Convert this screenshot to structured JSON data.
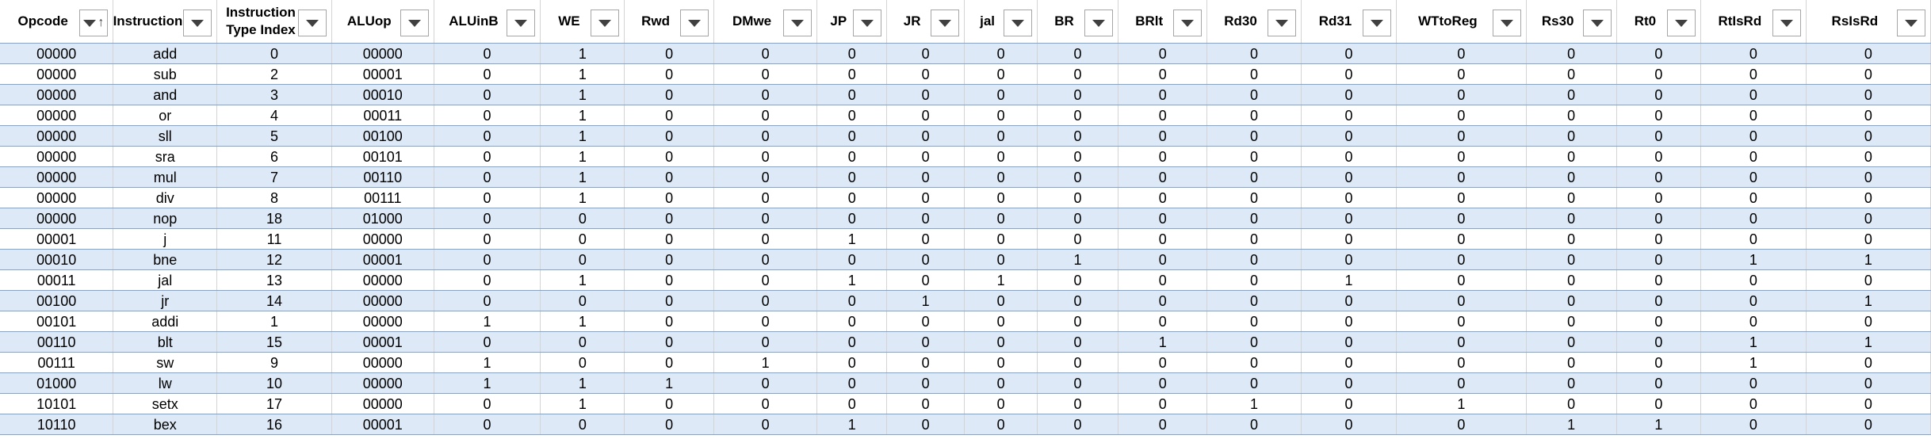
{
  "sheet": {
    "columns": [
      {
        "label": "Opcode",
        "sort_asc": true
      },
      {
        "label": "Instructions"
      },
      {
        "label": "Instruction Type Index",
        "lines": [
          "Instruction",
          "Type Index"
        ]
      },
      {
        "label": "ALUop"
      },
      {
        "label": "ALUinB"
      },
      {
        "label": "WE"
      },
      {
        "label": "Rwd"
      },
      {
        "label": "DMwe"
      },
      {
        "label": "JP"
      },
      {
        "label": "JR"
      },
      {
        "label": "jal"
      },
      {
        "label": "BR"
      },
      {
        "label": "BRlt"
      },
      {
        "label": "Rd30"
      },
      {
        "label": "Rd31"
      },
      {
        "label": "WTtoReg"
      },
      {
        "label": "Rs30"
      },
      {
        "label": "Rt0"
      },
      {
        "label": "RtIsRd"
      },
      {
        "label": "RsIsRd"
      }
    ],
    "rows": [
      [
        "00000",
        "add",
        "0",
        "00000",
        "0",
        "1",
        "0",
        "0",
        "0",
        "0",
        "0",
        "0",
        "0",
        "0",
        "0",
        "0",
        "0",
        "0",
        "0",
        "0"
      ],
      [
        "00000",
        "sub",
        "2",
        "00001",
        "0",
        "1",
        "0",
        "0",
        "0",
        "0",
        "0",
        "0",
        "0",
        "0",
        "0",
        "0",
        "0",
        "0",
        "0",
        "0"
      ],
      [
        "00000",
        "and",
        "3",
        "00010",
        "0",
        "1",
        "0",
        "0",
        "0",
        "0",
        "0",
        "0",
        "0",
        "0",
        "0",
        "0",
        "0",
        "0",
        "0",
        "0"
      ],
      [
        "00000",
        "or",
        "4",
        "00011",
        "0",
        "1",
        "0",
        "0",
        "0",
        "0",
        "0",
        "0",
        "0",
        "0",
        "0",
        "0",
        "0",
        "0",
        "0",
        "0"
      ],
      [
        "00000",
        "sll",
        "5",
        "00100",
        "0",
        "1",
        "0",
        "0",
        "0",
        "0",
        "0",
        "0",
        "0",
        "0",
        "0",
        "0",
        "0",
        "0",
        "0",
        "0"
      ],
      [
        "00000",
        "sra",
        "6",
        "00101",
        "0",
        "1",
        "0",
        "0",
        "0",
        "0",
        "0",
        "0",
        "0",
        "0",
        "0",
        "0",
        "0",
        "0",
        "0",
        "0"
      ],
      [
        "00000",
        "mul",
        "7",
        "00110",
        "0",
        "1",
        "0",
        "0",
        "0",
        "0",
        "0",
        "0",
        "0",
        "0",
        "0",
        "0",
        "0",
        "0",
        "0",
        "0"
      ],
      [
        "00000",
        "div",
        "8",
        "00111",
        "0",
        "1",
        "0",
        "0",
        "0",
        "0",
        "0",
        "0",
        "0",
        "0",
        "0",
        "0",
        "0",
        "0",
        "0",
        "0"
      ],
      [
        "00000",
        "nop",
        "18",
        "01000",
        "0",
        "0",
        "0",
        "0",
        "0",
        "0",
        "0",
        "0",
        "0",
        "0",
        "0",
        "0",
        "0",
        "0",
        "0",
        "0"
      ],
      [
        "00001",
        "j",
        "11",
        "00000",
        "0",
        "0",
        "0",
        "0",
        "1",
        "0",
        "0",
        "0",
        "0",
        "0",
        "0",
        "0",
        "0",
        "0",
        "0",
        "0"
      ],
      [
        "00010",
        "bne",
        "12",
        "00001",
        "0",
        "0",
        "0",
        "0",
        "0",
        "0",
        "0",
        "1",
        "0",
        "0",
        "0",
        "0",
        "0",
        "0",
        "1",
        "1"
      ],
      [
        "00011",
        "jal",
        "13",
        "00000",
        "0",
        "1",
        "0",
        "0",
        "1",
        "0",
        "1",
        "0",
        "0",
        "0",
        "1",
        "0",
        "0",
        "0",
        "0",
        "0"
      ],
      [
        "00100",
        "jr",
        "14",
        "00000",
        "0",
        "0",
        "0",
        "0",
        "0",
        "1",
        "0",
        "0",
        "0",
        "0",
        "0",
        "0",
        "0",
        "0",
        "0",
        "1"
      ],
      [
        "00101",
        "addi",
        "1",
        "00000",
        "1",
        "1",
        "0",
        "0",
        "0",
        "0",
        "0",
        "0",
        "0",
        "0",
        "0",
        "0",
        "0",
        "0",
        "0",
        "0"
      ],
      [
        "00110",
        "blt",
        "15",
        "00001",
        "0",
        "0",
        "0",
        "0",
        "0",
        "0",
        "0",
        "0",
        "1",
        "0",
        "0",
        "0",
        "0",
        "0",
        "1",
        "1"
      ],
      [
        "00111",
        "sw",
        "9",
        "00000",
        "1",
        "0",
        "0",
        "1",
        "0",
        "0",
        "0",
        "0",
        "0",
        "0",
        "0",
        "0",
        "0",
        "0",
        "1",
        "0"
      ],
      [
        "01000",
        "lw",
        "10",
        "00000",
        "1",
        "1",
        "1",
        "0",
        "0",
        "0",
        "0",
        "0",
        "0",
        "0",
        "0",
        "0",
        "0",
        "0",
        "0",
        "0"
      ],
      [
        "10101",
        "setx",
        "17",
        "00000",
        "0",
        "1",
        "0",
        "0",
        "0",
        "0",
        "0",
        "0",
        "0",
        "1",
        "0",
        "1",
        "0",
        "0",
        "0",
        "0"
      ],
      [
        "10110",
        "bex",
        "16",
        "00001",
        "0",
        "0",
        "0",
        "0",
        "1",
        "0",
        "0",
        "0",
        "0",
        "0",
        "0",
        "0",
        "1",
        "1",
        "0",
        "0"
      ]
    ]
  },
  "icons": {
    "filter": "filter-dropdown-icon",
    "sort": "sort-ascending-icon"
  }
}
